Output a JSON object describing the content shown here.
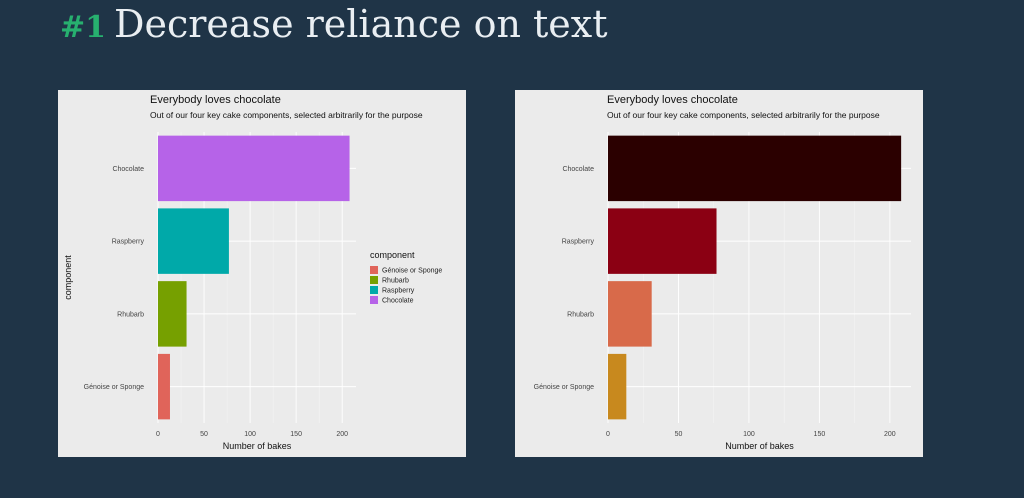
{
  "slide": {
    "number": "#1",
    "title": "Decrease reliance on text"
  },
  "chart_data": [
    {
      "type": "bar",
      "orientation": "horizontal",
      "title": "Everybody loves chocolate",
      "subtitle": "Out of our four key cake components, selected arbitrarily for the purpose",
      "xlabel": "Number of bakes",
      "ylabel": "component",
      "xlim": [
        0,
        215
      ],
      "xticks": [
        0,
        50,
        100,
        150,
        200
      ],
      "categories": [
        "Chocolate",
        "Raspberry",
        "Rhubarb",
        "Génoise or Sponge"
      ],
      "values": [
        208,
        77,
        31,
        13
      ],
      "colors": [
        "#b663e8",
        "#00a9a9",
        "#76a000",
        "#e0645a"
      ],
      "grid": true,
      "legend": {
        "title": "component",
        "placement": "right",
        "entries": [
          {
            "label": "Génoise or Sponge",
            "color": "#e0645a"
          },
          {
            "label": "Rhubarb",
            "color": "#76a000"
          },
          {
            "label": "Raspberry",
            "color": "#00a9a9"
          },
          {
            "label": "Chocolate",
            "color": "#b663e8"
          }
        ]
      }
    },
    {
      "type": "bar",
      "orientation": "horizontal",
      "title": "Everybody loves chocolate",
      "subtitle": "Out of our four key cake components, selected arbitrarily for the purpose",
      "xlabel": "Number of bakes",
      "ylabel": "",
      "xlim": [
        0,
        215
      ],
      "xticks": [
        0,
        50,
        100,
        150,
        200
      ],
      "categories": [
        "Chocolate",
        "Raspberry",
        "Rhubarb",
        "Génoise or Sponge"
      ],
      "values": [
        208,
        77,
        31,
        13
      ],
      "colors": [
        "#2b0000",
        "#8b0013",
        "#d86a4a",
        "#c8891e"
      ],
      "grid": true
    }
  ]
}
